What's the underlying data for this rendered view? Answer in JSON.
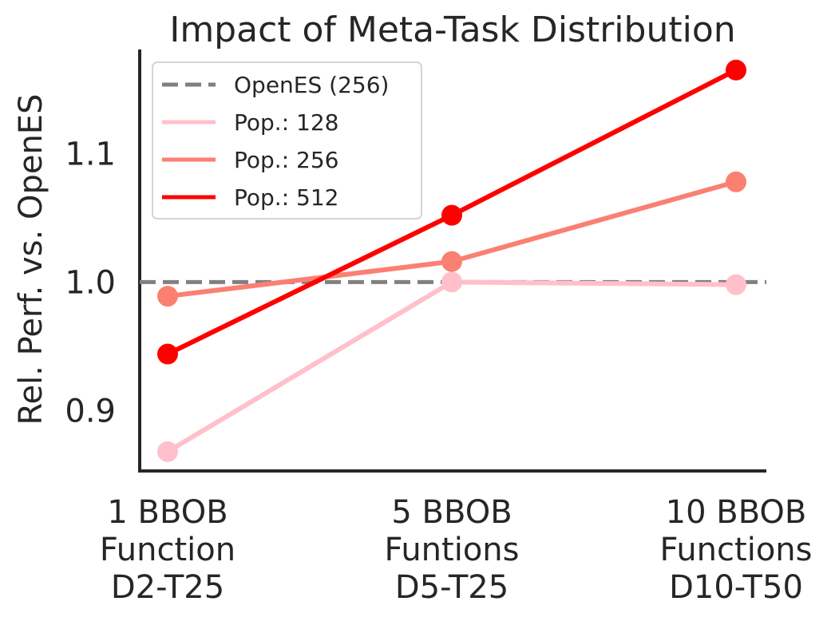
{
  "chart_data": {
    "type": "line",
    "title": "Impact of Meta-Task Distribution",
    "xlabel": "",
    "ylabel": "Rel. Perf. vs. OpenES",
    "categories": [
      [
        "1 BBOB",
        "Function",
        "D2-T25"
      ],
      [
        "5 BBOB",
        "Funtions",
        "D5-T25"
      ],
      [
        "10 BBOB",
        "Functions",
        "D10-T50"
      ]
    ],
    "ylim": [
      0.853,
      1.181
    ],
    "yticks": [
      0.9,
      1.0,
      1.1
    ],
    "ytick_labels": [
      "0.9",
      "1.0",
      "1.1"
    ],
    "grid": false,
    "legend_position": "top-left",
    "baseline": {
      "name": "OpenES (256)",
      "value": 1.0,
      "color": "#808080",
      "style": "dashed"
    },
    "series": [
      {
        "name": "Pop.: 128",
        "color": "#ffc0cb",
        "values": [
          0.868,
          1.0,
          0.998
        ]
      },
      {
        "name": "Pop.: 256",
        "color": "#fa8072",
        "values": [
          0.989,
          1.016,
          1.078
        ]
      },
      {
        "name": "Pop.: 512",
        "color": "#ff0000",
        "values": [
          0.944,
          1.052,
          1.165
        ]
      }
    ]
  }
}
